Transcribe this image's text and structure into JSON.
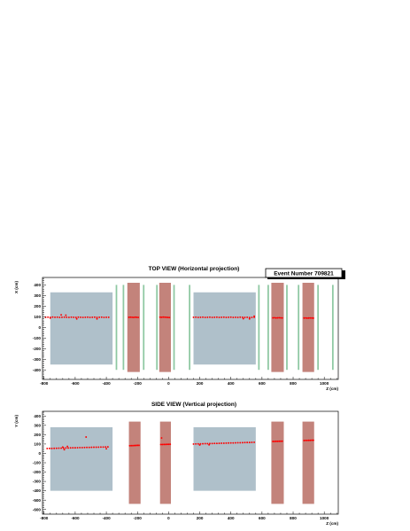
{
  "colors": {
    "background": "#ffffff",
    "iron": "#afc0ca",
    "magnet": "#c3837b",
    "station": "#8ec8a2",
    "hit": "#ff0000",
    "axis": "#000000"
  },
  "event": {
    "label": "Event Number 709821"
  },
  "chart_data": [
    {
      "type": "scatter",
      "title": "TOP VIEW (Horizontal projection)",
      "xlabel": "Z (cm)",
      "ylabel": "X (cm)",
      "xlim": [
        -810,
        1090
      ],
      "ylim": [
        -490,
        470
      ],
      "xticks": [
        -800,
        -600,
        -400,
        -200,
        0,
        200,
        400,
        600,
        800,
        1000
      ],
      "yticks": [
        -400,
        -300,
        -200,
        -100,
        0,
        100,
        200,
        300,
        400
      ],
      "grid": false,
      "regions": [
        {
          "kind": "iron",
          "x": [
            -760,
            -360
          ],
          "y": [
            -350,
            330
          ]
        },
        {
          "kind": "magnet",
          "x": [
            -265,
            -185
          ],
          "y": [
            -420,
            420
          ]
        },
        {
          "kind": "magnet",
          "x": [
            -60,
            15
          ],
          "y": [
            -420,
            420
          ]
        },
        {
          "kind": "iron",
          "x": [
            160,
            560
          ],
          "y": [
            -350,
            330
          ]
        },
        {
          "kind": "magnet",
          "x": [
            660,
            740
          ],
          "y": [
            -420,
            420
          ]
        },
        {
          "kind": "magnet",
          "x": [
            860,
            935
          ],
          "y": [
            -420,
            420
          ]
        },
        {
          "kind": "station",
          "x": [
            -340,
            -330
          ],
          "y": [
            -400,
            400
          ]
        },
        {
          "kind": "station",
          "x": [
            -295,
            -285
          ],
          "y": [
            -400,
            400
          ]
        },
        {
          "kind": "station",
          "x": [
            -165,
            -155
          ],
          "y": [
            -400,
            400
          ]
        },
        {
          "kind": "station",
          "x": [
            -80,
            -70
          ],
          "y": [
            -400,
            400
          ]
        },
        {
          "kind": "station",
          "x": [
            30,
            40
          ],
          "y": [
            -400,
            400
          ]
        },
        {
          "kind": "station",
          "x": [
            130,
            140
          ],
          "y": [
            -400,
            400
          ]
        },
        {
          "kind": "station",
          "x": [
            575,
            585
          ],
          "y": [
            -400,
            400
          ]
        },
        {
          "kind": "station",
          "x": [
            635,
            645
          ],
          "y": [
            -400,
            400
          ]
        },
        {
          "kind": "station",
          "x": [
            755,
            765
          ],
          "y": [
            -400,
            400
          ]
        },
        {
          "kind": "station",
          "x": [
            830,
            840
          ],
          "y": [
            -400,
            400
          ]
        },
        {
          "kind": "station",
          "x": [
            955,
            965
          ],
          "y": [
            -400,
            400
          ]
        },
        {
          "kind": "station",
          "x": [
            1050,
            1060
          ],
          "y": [
            -400,
            400
          ]
        }
      ],
      "series": [
        {
          "x": [
            -790,
            -775,
            -760,
            -745,
            -730,
            -715,
            -700,
            -685,
            -670,
            -655,
            -640,
            -625,
            -610,
            -595,
            -580,
            -565,
            -550,
            -535,
            -520,
            -505,
            -490,
            -475,
            -460,
            -445,
            -430,
            -415,
            -400,
            -385,
            -690,
            -660,
            -590,
            -460,
            -760
          ],
          "y": [
            95,
            96,
            94,
            97,
            95,
            96,
            94,
            95,
            96,
            95,
            94,
            96,
            95,
            94,
            96,
            95,
            94,
            95,
            96,
            94,
            95,
            96,
            94,
            95,
            96,
            94,
            95,
            95,
            118,
            115,
            80,
            80,
            88
          ]
        },
        {
          "x": [
            -255,
            -245,
            -235,
            -225,
            -215,
            -205,
            -195
          ],
          "y": [
            95,
            96,
            95,
            94,
            96,
            95,
            94
          ]
        },
        {
          "x": [
            -55,
            -45,
            -35,
            -25,
            -15,
            -5,
            5
          ],
          "y": [
            96,
            95,
            97,
            96,
            95,
            94,
            93
          ]
        },
        {
          "x": [
            160,
            175,
            190,
            205,
            220,
            235,
            250,
            265,
            280,
            295,
            310,
            325,
            340,
            355,
            370,
            385,
            400,
            415,
            430,
            445,
            460,
            475,
            490,
            505,
            520,
            535,
            550,
            480,
            520,
            550
          ],
          "y": [
            95,
            96,
            94,
            95,
            96,
            94,
            95,
            96,
            94,
            95,
            96,
            94,
            95,
            96,
            94,
            95,
            96,
            94,
            95,
            94,
            96,
            95,
            94,
            95,
            93,
            94,
            95,
            82,
            80,
            105
          ]
        },
        {
          "x": [
            670,
            680,
            690,
            700,
            710,
            720,
            730
          ],
          "y": [
            90,
            91,
            89,
            90,
            91,
            90,
            89
          ]
        },
        {
          "x": [
            870,
            880,
            890,
            900,
            910,
            920,
            930
          ],
          "y": [
            88,
            89,
            87,
            88,
            89,
            88,
            87
          ]
        }
      ]
    },
    {
      "type": "scatter",
      "title": "SIDE VIEW (Vertical projection)",
      "xlabel": "Z (cm)",
      "ylabel": "Y (cm)",
      "xlim": [
        -810,
        1090
      ],
      "ylim": [
        -650,
        450
      ],
      "xticks": [
        -800,
        -600,
        -400,
        -200,
        0,
        200,
        400,
        600,
        800,
        1000
      ],
      "yticks": [
        -600,
        -500,
        -400,
        -300,
        -200,
        -100,
        0,
        100,
        200,
        300,
        400
      ],
      "grid": false,
      "regions": [
        {
          "kind": "iron",
          "x": [
            -760,
            -360
          ],
          "y": [
            -400,
            280
          ]
        },
        {
          "kind": "magnet",
          "x": [
            -255,
            -180
          ],
          "y": [
            -540,
            340
          ]
        },
        {
          "kind": "magnet",
          "x": [
            -55,
            15
          ],
          "y": [
            -540,
            340
          ]
        },
        {
          "kind": "iron",
          "x": [
            160,
            560
          ],
          "y": [
            -400,
            280
          ]
        },
        {
          "kind": "magnet",
          "x": [
            660,
            740
          ],
          "y": [
            -540,
            340
          ]
        },
        {
          "kind": "magnet",
          "x": [
            860,
            935
          ],
          "y": [
            -540,
            340
          ]
        }
      ],
      "series": [
        {
          "x": [
            -780,
            -765,
            -750,
            -735,
            -720,
            -705,
            -690,
            -675,
            -660,
            -645,
            -630,
            -615,
            -600,
            -585,
            -570,
            -555,
            -540,
            -525,
            -510,
            -495,
            -480,
            -465,
            -450,
            -435,
            -420,
            -405,
            -390,
            -670,
            -650,
            -530,
            -400,
            -680
          ],
          "y": [
            52,
            53,
            53,
            54,
            55,
            56,
            56,
            57,
            58,
            58,
            59,
            60,
            60,
            61,
            62,
            62,
            63,
            64,
            64,
            65,
            66,
            66,
            67,
            68,
            68,
            69,
            70,
            40,
            75,
            175,
            50,
            68
          ]
        },
        {
          "x": [
            -250,
            -240,
            -230,
            -220,
            -210,
            -200,
            -190
          ],
          "y": [
            82,
            83,
            83,
            84,
            85,
            86,
            86
          ]
        },
        {
          "x": [
            -50,
            -40,
            -30,
            -20,
            -10,
            0,
            10,
            -45
          ],
          "y": [
            95,
            95,
            96,
            96,
            97,
            97,
            98,
            165
          ]
        },
        {
          "x": [
            160,
            175,
            190,
            205,
            220,
            235,
            250,
            265,
            280,
            295,
            310,
            325,
            340,
            355,
            370,
            385,
            400,
            415,
            430,
            445,
            460,
            475,
            490,
            505,
            520,
            535,
            550,
            200,
            260
          ],
          "y": [
            100,
            101,
            102,
            102,
            103,
            104,
            104,
            105,
            106,
            107,
            107,
            108,
            109,
            109,
            110,
            111,
            112,
            112,
            113,
            114,
            114,
            115,
            116,
            117,
            117,
            118,
            119,
            90,
            92
          ]
        },
        {
          "x": [
            670,
            680,
            690,
            700,
            710,
            720,
            730
          ],
          "y": [
            128,
            128,
            129,
            129,
            130,
            130,
            131
          ]
        },
        {
          "x": [
            870,
            880,
            890,
            900,
            910,
            920,
            930
          ],
          "y": [
            138,
            139,
            139,
            140,
            140,
            141,
            141
          ]
        }
      ]
    }
  ]
}
